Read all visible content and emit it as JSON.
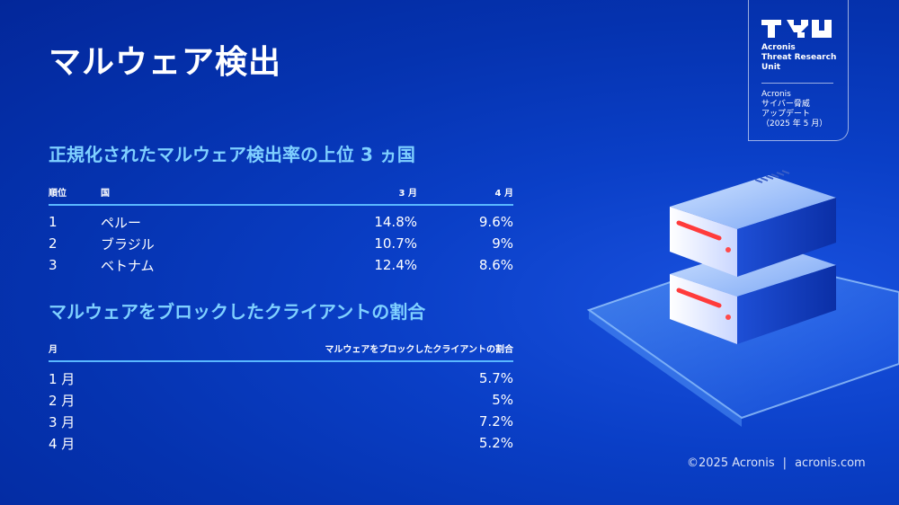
{
  "title": "マルウェア検出",
  "badge": {
    "org_lines": [
      "Acronis",
      "Threat Research",
      "Unit"
    ],
    "report_lines": [
      "Acronis",
      "サイバー脅威",
      "アップデート",
      "（2025 年 5 月）"
    ]
  },
  "section1": {
    "title": "正規化されたマルウェア検出率の上位 3 ヵ国",
    "headers": {
      "rank": "順位",
      "country": "国",
      "march": "3 月",
      "april": "4 月"
    },
    "rows": [
      {
        "rank": "1",
        "country": "ペルー",
        "march": "14.8%",
        "april": "9.6%"
      },
      {
        "rank": "2",
        "country": "ブラジル",
        "march": "10.7%",
        "april": "9%"
      },
      {
        "rank": "3",
        "country": "ベトナム",
        "march": "12.4%",
        "april": "8.6%"
      }
    ]
  },
  "section2": {
    "title": "マルウェアをブロックしたクライアントの割合",
    "headers": {
      "month": "月",
      "share": "マルウェアをブロックしたクライアントの割合"
    },
    "rows": [
      {
        "month": "1 月",
        "share": "5.7%"
      },
      {
        "month": "2 月",
        "share": "5%"
      },
      {
        "month": "3 月",
        "share": "7.2%"
      },
      {
        "month": "4 月",
        "share": "5.2%"
      }
    ]
  },
  "footer": {
    "copyright": "©2025 Acronis",
    "separator": "|",
    "website": "acronis.com"
  },
  "colors": {
    "accent_cyan": "#7fd0ff",
    "rule_blue": "#5ab8ff",
    "background": "#0a3fc7"
  }
}
